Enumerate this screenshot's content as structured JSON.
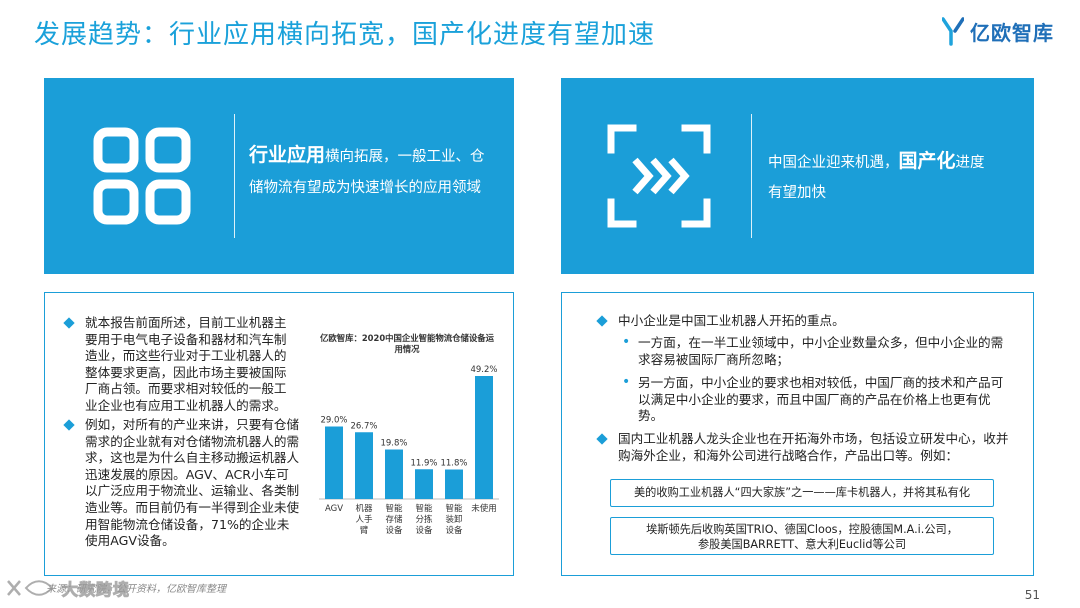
{
  "header": {
    "title": "发展趋势：行业应用横向拓宽，国产化进度有望加速",
    "logo_text": "亿欧智库"
  },
  "hero_left": {
    "icon": "grid-apps-icon",
    "highlight": "行业应用",
    "rest": "横向拓展，一般工业、仓储物流有望成为快速增长的应用领域"
  },
  "hero_right": {
    "icon": "chevrons-right-icon",
    "lead": "中国企业迎来机遇，",
    "highlight": "国产化",
    "rest": "进度有望加快"
  },
  "left_panel": {
    "bullets": [
      "就本报告前面所述，目前工业机器主要用于电气电子设备和器材和汽车制造业，而这些行业对于工业机器人的整体要求更高，因此市场主要被国际厂商占领。而要求相对较低的一般工业企业也有应用工业机器人的需求。",
      "例如，对所有的产业来讲，只要有仓储需求的企业就有对仓储物流机器人的需求，这也是为什么自主移动搬运机器人迅速发展的原因。AGV、ACR小车可以广泛应用于物流业、运输业、各类制造业等。而目前仍有一半得到企业未使用智能物流仓储设备，71%的企业未使用AGV设备。"
    ]
  },
  "chart_data": {
    "type": "bar",
    "title": "亿欧智库：2020中国企业智能物流仓储设备运用情况",
    "categories": [
      "AGV",
      "机器人手臂",
      "智能存储设备",
      "智能分拣设备",
      "智能装卸设备",
      "未使用"
    ],
    "values": [
      29.0,
      26.7,
      19.8,
      11.9,
      11.8,
      49.2
    ],
    "value_labels": [
      "29.0%",
      "26.7%",
      "19.8%",
      "11.9%",
      "11.8%",
      "49.2%"
    ],
    "unit": "%",
    "ylim": [
      0,
      52
    ],
    "grid": false,
    "bar_color": "#1b9ed8"
  },
  "right_panel": {
    "bullet1": "中小企业是中国工业机器人开拓的重点。",
    "sub_items": [
      "一方面，在一半工业领域中，中小企业数量众多，但中小企业的需求容易被国际厂商所忽略；",
      "另一方面，中小企业的要求也相对较低，中国厂商的技术和产品可以满足中小企业的要求，而且中国厂商的产品在价格上也更有优势。"
    ],
    "bullet2": "国内工业机器人龙头企业也在开拓海外市场，包括设立研发中心，收并购海外企业，和海外公司进行战略合作，产品出口等。例如：",
    "quote1": "美的收购工业机器人“四大家族”之一——库卡机器人，并将其私有化",
    "quote2_line1": "埃斯顿先后收购英国TRIO、德国Cloos，控股德国M.A.i.公司，",
    "quote2_line2": "参股美国BARRETT、意大利Euclid等公司"
  },
  "footer": {
    "source": "来源：研究院，公开资料，亿欧智库整理",
    "page_number": "51",
    "watermark": "大数跨境"
  },
  "colors": {
    "accent": "#1b9ed8",
    "title": "#1aa1da"
  }
}
